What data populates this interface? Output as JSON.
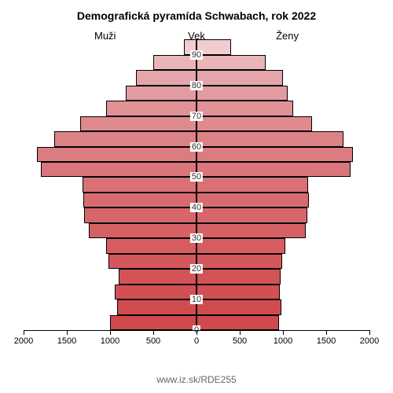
{
  "title": "Demografická pyramída Schwabach, rok 2022",
  "labels": {
    "left": "Muži",
    "right": "Ženy",
    "age": "Vek"
  },
  "source": "www.iz.sk/RDE255",
  "chart": {
    "type": "population-pyramid",
    "background_color": "#ffffff",
    "bar_border_color": "#000000",
    "bar_border_width": 1,
    "title_fontsize": 14,
    "label_fontsize": 13,
    "tick_fontsize": 11,
    "x_max": 2000,
    "x_ticks_left": [
      2000,
      1500,
      1000,
      500,
      0
    ],
    "x_ticks_right": [
      0,
      500,
      1000,
      1500,
      2000
    ],
    "y_ticks": [
      0,
      10,
      20,
      30,
      40,
      50,
      60,
      70,
      80,
      90
    ],
    "age_step": 5,
    "age_min": 0,
    "age_max": 92.5,
    "bins": [
      {
        "age_lo": 0,
        "male": 1000,
        "m_color": "#d0494c",
        "female": 950,
        "f_color": "#d0494c"
      },
      {
        "age_lo": 5,
        "male": 920,
        "m_color": "#d14c4f",
        "female": 980,
        "f_color": "#d14c4f"
      },
      {
        "age_lo": 10,
        "male": 950,
        "m_color": "#d25053",
        "female": 960,
        "f_color": "#d25053"
      },
      {
        "age_lo": 15,
        "male": 900,
        "m_color": "#d35457",
        "female": 970,
        "f_color": "#d35457"
      },
      {
        "age_lo": 20,
        "male": 1020,
        "m_color": "#d4585b",
        "female": 990,
        "f_color": "#d4585b"
      },
      {
        "age_lo": 25,
        "male": 1050,
        "m_color": "#d55d60",
        "female": 1030,
        "f_color": "#d55d60"
      },
      {
        "age_lo": 30,
        "male": 1250,
        "m_color": "#d66165",
        "female": 1260,
        "f_color": "#d66165"
      },
      {
        "age_lo": 35,
        "male": 1300,
        "m_color": "#d7666a",
        "female": 1280,
        "f_color": "#d7666a"
      },
      {
        "age_lo": 40,
        "male": 1310,
        "m_color": "#d86b6f",
        "female": 1300,
        "f_color": "#d86b6f"
      },
      {
        "age_lo": 45,
        "male": 1320,
        "m_color": "#d97075",
        "female": 1290,
        "f_color": "#d97075"
      },
      {
        "age_lo": 50,
        "male": 1800,
        "m_color": "#da767b",
        "female": 1780,
        "f_color": "#da767b"
      },
      {
        "age_lo": 55,
        "male": 1850,
        "m_color": "#db7c81",
        "female": 1810,
        "f_color": "#db7c81"
      },
      {
        "age_lo": 60,
        "male": 1650,
        "m_color": "#dc8388",
        "female": 1700,
        "f_color": "#dc8388"
      },
      {
        "age_lo": 65,
        "male": 1350,
        "m_color": "#de8a8f",
        "female": 1340,
        "f_color": "#de8a8f"
      },
      {
        "age_lo": 70,
        "male": 1050,
        "m_color": "#e09297",
        "female": 1120,
        "f_color": "#e09297"
      },
      {
        "age_lo": 75,
        "male": 820,
        "m_color": "#e29ba0",
        "female": 1050,
        "f_color": "#e29ba0"
      },
      {
        "age_lo": 80,
        "male": 700,
        "m_color": "#e5a6ab",
        "female": 1000,
        "f_color": "#e5a6ab"
      },
      {
        "age_lo": 85,
        "male": 500,
        "m_color": "#eab5b9",
        "female": 800,
        "f_color": "#eab5b9"
      },
      {
        "age_lo": 90,
        "male": 150,
        "m_color": "#f1cdd0",
        "female": 400,
        "f_color": "#f1cdd0"
      }
    ]
  }
}
